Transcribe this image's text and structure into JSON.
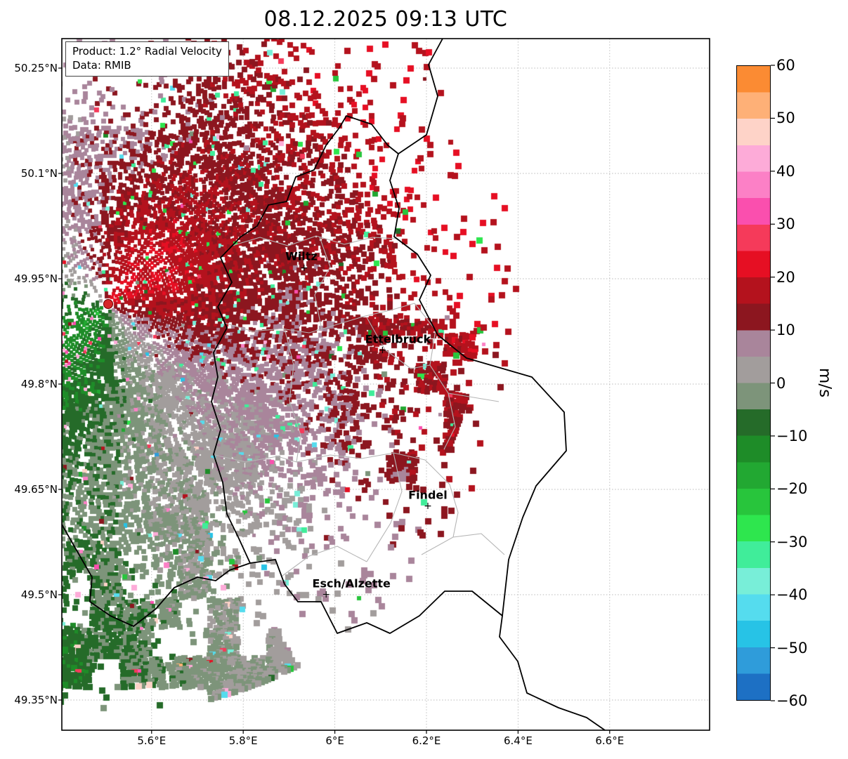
{
  "title": "08.12.2025 09:13 UTC",
  "info_box": {
    "product": "Product: 1.2° Radial Velocity",
    "source": "Data: RMIB"
  },
  "map": {
    "lat_ticks": [
      {
        "label": "50.25°N",
        "value": 50.25
      },
      {
        "label": "50.1°N",
        "value": 50.1
      },
      {
        "label": "49.95°N",
        "value": 49.95
      },
      {
        "label": "49.8°N",
        "value": 49.8
      },
      {
        "label": "49.65°N",
        "value": 49.65
      },
      {
        "label": "49.5°N",
        "value": 49.5
      },
      {
        "label": "49.35°N",
        "value": 49.35
      }
    ],
    "lon_ticks": [
      {
        "label": "5.6°E",
        "value": 5.6
      },
      {
        "label": "5.8°E",
        "value": 5.8
      },
      {
        "label": "6°E",
        "value": 6.0
      },
      {
        "label": "6.2°E",
        "value": 6.2
      },
      {
        "label": "6.4°E",
        "value": 6.4
      },
      {
        "label": "6.6°E",
        "value": 6.6
      }
    ],
    "cities": [
      {
        "name": "Wiltz",
        "lon": 5.933,
        "lat": 49.965
      },
      {
        "name": "Ettelbruck",
        "lon": 6.104,
        "lat": 49.848
      },
      {
        "name": "Findel",
        "lon": 6.203,
        "lat": 49.626
      },
      {
        "name": "Esch/Alzette",
        "lon": 5.981,
        "lat": 49.5
      }
    ],
    "radar_site": {
      "lon": 5.505,
      "lat": 49.914,
      "marker_color": "#d62728"
    }
  },
  "colorbar": {
    "unit": "m/s",
    "min": -60,
    "max": 60,
    "ticks": [
      {
        "label": "60",
        "value": 60
      },
      {
        "label": "50",
        "value": 50
      },
      {
        "label": "40",
        "value": 40
      },
      {
        "label": "30",
        "value": 30
      },
      {
        "label": "20",
        "value": 20
      },
      {
        "label": "10",
        "value": 10
      },
      {
        "label": "0",
        "value": 0
      },
      {
        "label": "−10",
        "value": -10
      },
      {
        "label": "−20",
        "value": -20
      },
      {
        "label": "−30",
        "value": -30
      },
      {
        "label": "−40",
        "value": -40
      },
      {
        "label": "−50",
        "value": -50
      },
      {
        "label": "−60",
        "value": -60
      }
    ],
    "bands": [
      {
        "from": -60,
        "to": -55,
        "color": "#1d70c4"
      },
      {
        "from": -55,
        "to": -50,
        "color": "#2f9cda"
      },
      {
        "from": -50,
        "to": -45,
        "color": "#27c3e6"
      },
      {
        "from": -45,
        "to": -40,
        "color": "#55dcee"
      },
      {
        "from": -40,
        "to": -35,
        "color": "#78eed8"
      },
      {
        "from": -35,
        "to": -30,
        "color": "#40ed9a"
      },
      {
        "from": -30,
        "to": -25,
        "color": "#2ee64e"
      },
      {
        "from": -25,
        "to": -20,
        "color": "#28c53c"
      },
      {
        "from": -20,
        "to": -15,
        "color": "#22a832"
      },
      {
        "from": -15,
        "to": -10,
        "color": "#1e8c28"
      },
      {
        "from": -10,
        "to": -5,
        "color": "#256b29"
      },
      {
        "from": -5,
        "to": 0,
        "color": "#7d947a"
      },
      {
        "from": 0,
        "to": 5,
        "color": "#a29d9c"
      },
      {
        "from": 5,
        "to": 10,
        "color": "#a9859b"
      },
      {
        "from": 10,
        "to": 15,
        "color": "#8c161f"
      },
      {
        "from": 15,
        "to": 20,
        "color": "#b4121d"
      },
      {
        "from": 20,
        "to": 25,
        "color": "#e60f23"
      },
      {
        "from": 25,
        "to": 30,
        "color": "#f53a5a"
      },
      {
        "from": 30,
        "to": 35,
        "color": "#fa4fae"
      },
      {
        "from": 35,
        "to": 40,
        "color": "#fc80c6"
      },
      {
        "from": 40,
        "to": 45,
        "color": "#fdabd8"
      },
      {
        "from": 45,
        "to": 50,
        "color": "#fed3c8"
      },
      {
        "from": 50,
        "to": 55,
        "color": "#feb077"
      },
      {
        "from": 55,
        "to": 60,
        "color": "#fb8b33"
      }
    ]
  }
}
